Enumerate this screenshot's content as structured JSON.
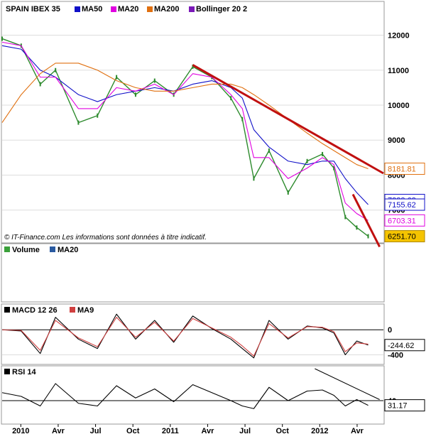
{
  "colors": {
    "price": "#2e8b2e",
    "ma50": "#1010c8",
    "ma20": "#e000e0",
    "ma200": "#e07010",
    "bollinger": "#7a18b8",
    "trendline": "#c01010",
    "volume": "#3aa03a",
    "volume_ma20": "#2a5aa0",
    "macd": "#000000",
    "macd_signal": "#d04040",
    "rsi": "#000000"
  },
  "chart_data": [
    {
      "type": "line",
      "title": "SPAIN IBEX 35",
      "legend": [
        {
          "label": "MA50",
          "color": "#1010c8"
        },
        {
          "label": "MA20",
          "color": "#e000e0"
        },
        {
          "label": "MA200",
          "color": "#e07010"
        },
        {
          "label": "Bollinger 20 2",
          "color": "#7a18b8"
        }
      ],
      "ylim": [
        6100,
        12600
      ],
      "y_ticks": [
        "12000",
        "11000",
        "10000",
        "9000",
        "8000",
        "7000"
      ],
      "x_ticks": [
        "2010",
        "Avr",
        "Jul",
        "Oct",
        "2011",
        "Avr",
        "Jul",
        "Oct",
        "2012",
        "Avr"
      ],
      "value_tags": [
        {
          "text": "8181.81",
          "value": 8181.81,
          "style": "ma200"
        },
        {
          "text": "7288.68",
          "value": 7288.68,
          "style": "ma50"
        },
        {
          "text": "7155.62",
          "value": 7155.62,
          "style": "ma50"
        },
        {
          "text": "6703.31",
          "value": 6703.31,
          "style": "ma20"
        },
        {
          "text": "6251.70",
          "value": 6251.7,
          "style": "price"
        }
      ],
      "series": [
        {
          "name": "SPAIN IBEX 35",
          "x": [
            0,
            0.05,
            0.1,
            0.14,
            0.2,
            0.25,
            0.3,
            0.35,
            0.4,
            0.45,
            0.5,
            0.55,
            0.6,
            0.63,
            0.66,
            0.7,
            0.75,
            0.8,
            0.84,
            0.87,
            0.9,
            0.93,
            0.96
          ],
          "values": [
            11900,
            11700,
            10600,
            11000,
            9500,
            9700,
            10800,
            10300,
            10700,
            10300,
            11100,
            10800,
            10200,
            9600,
            7900,
            8700,
            7500,
            8400,
            8600,
            8200,
            6800,
            6500,
            6251.7
          ]
        },
        {
          "name": "MA50",
          "x": [
            0,
            0.05,
            0.1,
            0.14,
            0.2,
            0.25,
            0.3,
            0.35,
            0.4,
            0.45,
            0.5,
            0.55,
            0.6,
            0.63,
            0.66,
            0.7,
            0.75,
            0.8,
            0.84,
            0.87,
            0.9,
            0.93,
            0.96
          ],
          "values": [
            11700,
            11600,
            11000,
            10800,
            10300,
            10100,
            10300,
            10400,
            10500,
            10400,
            10600,
            10700,
            10500,
            10200,
            9300,
            8800,
            8400,
            8300,
            8400,
            8400,
            7900,
            7500,
            7155.62
          ]
        },
        {
          "name": "MA20",
          "x": [
            0,
            0.05,
            0.1,
            0.14,
            0.2,
            0.25,
            0.3,
            0.35,
            0.4,
            0.45,
            0.5,
            0.55,
            0.6,
            0.63,
            0.66,
            0.7,
            0.75,
            0.8,
            0.84,
            0.87,
            0.9,
            0.93,
            0.96
          ],
          "values": [
            11800,
            11700,
            10800,
            10800,
            9900,
            9900,
            10500,
            10400,
            10600,
            10300,
            10900,
            10800,
            10300,
            9900,
            8500,
            8500,
            7900,
            8200,
            8500,
            8300,
            7200,
            6900,
            6703.31
          ]
        },
        {
          "name": "MA200",
          "x": [
            0,
            0.05,
            0.1,
            0.14,
            0.2,
            0.25,
            0.3,
            0.35,
            0.4,
            0.45,
            0.5,
            0.55,
            0.6,
            0.63,
            0.66,
            0.7,
            0.75,
            0.8,
            0.84,
            0.87,
            0.9,
            0.93,
            0.96
          ],
          "values": [
            9500,
            10300,
            10900,
            11200,
            11200,
            11000,
            10700,
            10500,
            10400,
            10400,
            10500,
            10600,
            10600,
            10500,
            10300,
            10000,
            9600,
            9200,
            8900,
            8700,
            8500,
            8300,
            8181.81
          ]
        }
      ],
      "annotations": [
        {
          "type": "trendline",
          "from": [
            0.5,
            11150
          ],
          "to": [
            1.0,
            8050
          ]
        },
        {
          "type": "trendline",
          "from": [
            0.92,
            7450
          ],
          "to": [
            0.99,
            5950
          ]
        }
      ],
      "footer": "© IT-Finance.com   Les informations sont données à titre indicatif."
    },
    {
      "type": "bar",
      "legend": [
        {
          "label": "Volume",
          "color": "#3aa03a"
        },
        {
          "label": "MA20",
          "color": "#2a5aa0"
        }
      ]
    },
    {
      "type": "line",
      "legend": [
        {
          "label": "MACD 12 26",
          "color": "#000000"
        },
        {
          "label": "MA9",
          "color": "#d04040"
        }
      ],
      "ylim": [
        -520,
        230
      ],
      "y_ticks": [
        "0",
        "-400"
      ],
      "value_tags": [
        {
          "text": "-244.62",
          "value": -244.62
        }
      ],
      "series": [
        {
          "name": "MACD 12 26",
          "x": [
            0,
            0.05,
            0.1,
            0.14,
            0.2,
            0.25,
            0.3,
            0.35,
            0.4,
            0.45,
            0.5,
            0.55,
            0.6,
            0.63,
            0.66,
            0.7,
            0.75,
            0.8,
            0.84,
            0.87,
            0.9,
            0.93,
            0.96
          ],
          "values": [
            0,
            -20,
            -380,
            200,
            -150,
            -300,
            250,
            -150,
            150,
            -200,
            220,
            20,
            -150,
            -300,
            -450,
            150,
            -150,
            60,
            30,
            -50,
            -400,
            -180,
            -244.62
          ]
        },
        {
          "name": "MA9",
          "x": [
            0,
            0.05,
            0.1,
            0.14,
            0.2,
            0.25,
            0.3,
            0.35,
            0.4,
            0.45,
            0.5,
            0.55,
            0.6,
            0.63,
            0.66,
            0.7,
            0.75,
            0.8,
            0.84,
            0.87,
            0.9,
            0.93,
            0.96
          ],
          "values": [
            0,
            -10,
            -330,
            150,
            -130,
            -270,
            200,
            -120,
            120,
            -180,
            180,
            30,
            -120,
            -260,
            -420,
            100,
            -130,
            50,
            40,
            -30,
            -350,
            -210,
            -230
          ]
        }
      ]
    },
    {
      "type": "line",
      "legend": [
        {
          "label": "RSI 14",
          "color": "#000000"
        }
      ],
      "ylim": [
        0,
        100
      ],
      "y_ticks": [
        "40"
      ],
      "value_tags": [
        {
          "text": "31.17",
          "value": 31.17
        }
      ],
      "series": [
        {
          "name": "RSI 14",
          "x": [
            0,
            0.05,
            0.1,
            0.14,
            0.2,
            0.25,
            0.3,
            0.35,
            0.4,
            0.45,
            0.5,
            0.55,
            0.6,
            0.63,
            0.66,
            0.7,
            0.75,
            0.8,
            0.84,
            0.87,
            0.9,
            0.93,
            0.96
          ],
          "values": [
            55,
            48,
            30,
            72,
            35,
            30,
            68,
            45,
            62,
            38,
            70,
            55,
            40,
            30,
            25,
            65,
            40,
            58,
            60,
            50,
            30,
            42,
            31.17
          ]
        }
      ],
      "annotations": [
        {
          "type": "trendline",
          "from": [
            0.82,
            100
          ],
          "to": [
            0.99,
            42
          ]
        }
      ]
    }
  ]
}
